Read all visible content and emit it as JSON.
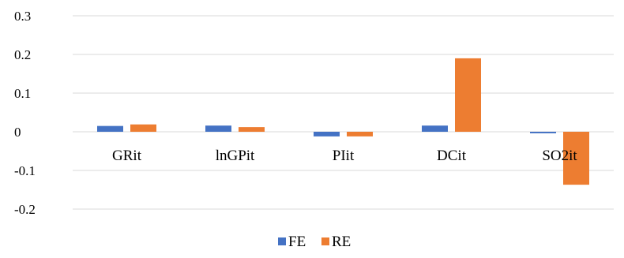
{
  "chart_data": {
    "type": "bar",
    "categories": [
      "GRit",
      "lnGPit",
      "PIit",
      "DCit",
      "SO2it"
    ],
    "series": [
      {
        "name": "FE",
        "values": [
          0.015,
          0.016,
          -0.012,
          0.016,
          -0.004
        ]
      },
      {
        "name": "RE",
        "values": [
          0.019,
          0.012,
          -0.012,
          0.19,
          -0.137
        ]
      }
    ],
    "ylim": [
      -0.2,
      0.3
    ],
    "yticks": [
      -0.2,
      -0.1,
      0,
      0.1,
      0.2,
      0.3
    ],
    "ytick_labels": [
      "-0.2",
      "-0.1",
      "0",
      "0.1",
      "0.2",
      "0.3"
    ],
    "grid": true,
    "legend_position": "bottom",
    "colors": {
      "FE": "#4472c4",
      "RE": "#ed7d31",
      "grid": "#d9d9d9",
      "text": "#000000"
    }
  }
}
